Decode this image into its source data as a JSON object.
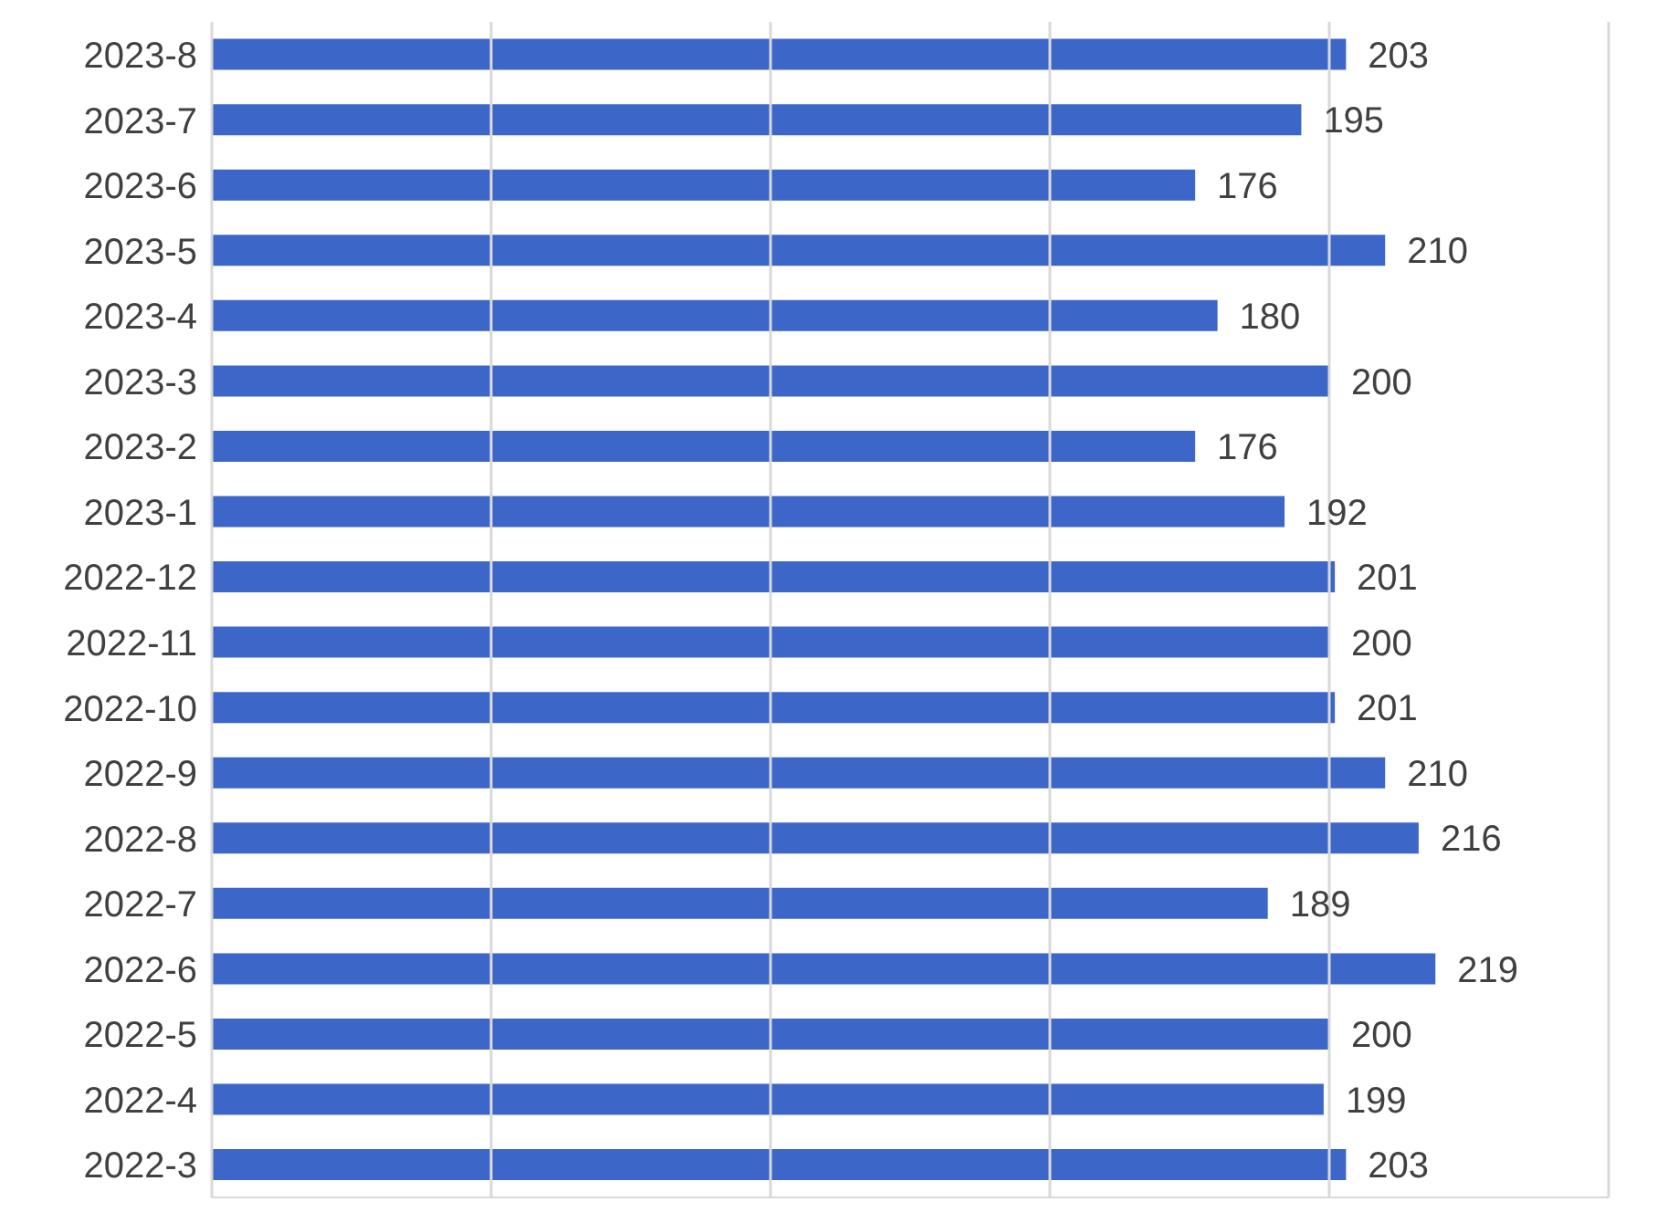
{
  "chart_data": {
    "type": "bar",
    "orientation": "horizontal",
    "categories": [
      "2023-8",
      "2023-7",
      "2023-6",
      "2023-5",
      "2023-4",
      "2023-3",
      "2023-2",
      "2023-1",
      "2022-12",
      "2022-11",
      "2022-10",
      "2022-9",
      "2022-8",
      "2022-7",
      "2022-6",
      "2022-5",
      "2022-4",
      "2022-3"
    ],
    "values": [
      203,
      195,
      176,
      210,
      180,
      200,
      176,
      192,
      201,
      200,
      201,
      210,
      216,
      189,
      219,
      200,
      199,
      203
    ],
    "color": "#3c66c8",
    "xlim": [
      0,
      250
    ],
    "xticks": [
      {
        "value": 0,
        "label": null
      },
      {
        "value": 50,
        "label": null
      },
      {
        "value": 100,
        "label": null
      },
      {
        "value": 150,
        "label": null
      },
      {
        "value": 200,
        "label": null
      },
      {
        "value": 250,
        "label": null
      }
    ],
    "grid": "x",
    "tick_labels": "y",
    "data_labels": true
  }
}
